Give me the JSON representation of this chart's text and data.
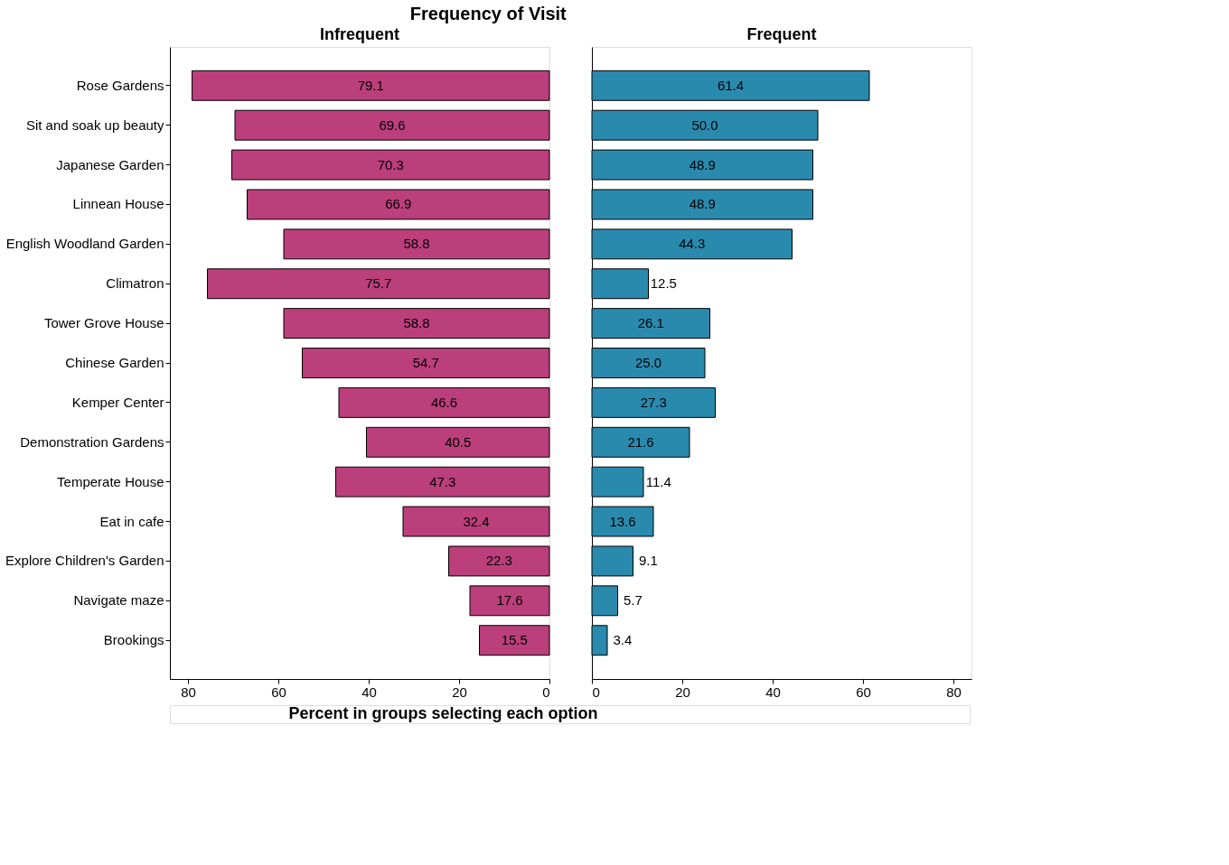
{
  "chart_data": [
    {
      "type": "bar",
      "orientation": "horizontal",
      "title": "Frequency of Visit",
      "subtitle": "Infrequent",
      "xlabel": "Percent in groups selecting each option",
      "categories": [
        "Rose Gardens",
        "Sit and soak up beauty",
        "Japanese Garden",
        "Linnean House",
        "English Woodland Garden",
        "Climatron",
        "Tower Grove House",
        "Chinese Garden",
        "Kemper Center",
        "Demonstration Gardens",
        "Temperate House",
        "Eat in cafe",
        "Explore Children's Garden",
        "Navigate maze",
        "Brookings"
      ],
      "values": [
        79.1,
        69.6,
        70.3,
        66.9,
        58.8,
        75.7,
        58.8,
        54.7,
        46.6,
        40.5,
        47.3,
        32.4,
        22.3,
        17.6,
        15.5
      ],
      "color": "#bb3f7a",
      "xlim": [
        84,
        0
      ],
      "xticks": [
        80,
        60,
        40,
        20,
        0
      ],
      "data_labels": true,
      "grid": false
    },
    {
      "type": "bar",
      "orientation": "horizontal",
      "subtitle": "Frequent",
      "categories": [
        null,
        null,
        null,
        null,
        null,
        null,
        null,
        null,
        null,
        null,
        null,
        null,
        null,
        null,
        null
      ],
      "values": [
        61.4,
        50.0,
        48.9,
        48.9,
        44.3,
        12.5,
        26.1,
        25.0,
        27.3,
        21.6,
        11.4,
        13.6,
        9.1,
        5.7,
        3.4
      ],
      "value_labels": [
        "61.4",
        "50.0",
        "48.9",
        "48.9",
        "44.3",
        "12.5",
        "26.1",
        "25.0",
        "27.3",
        "21.6",
        "11.4",
        "13.6",
        "9.1",
        "5.7",
        "3.4"
      ],
      "color": "#2a8aae",
      "xlim": [
        0,
        84
      ],
      "xticks": [
        0,
        20,
        40,
        60,
        80
      ],
      "grid": false,
      "tick_labels": "x"
    }
  ]
}
